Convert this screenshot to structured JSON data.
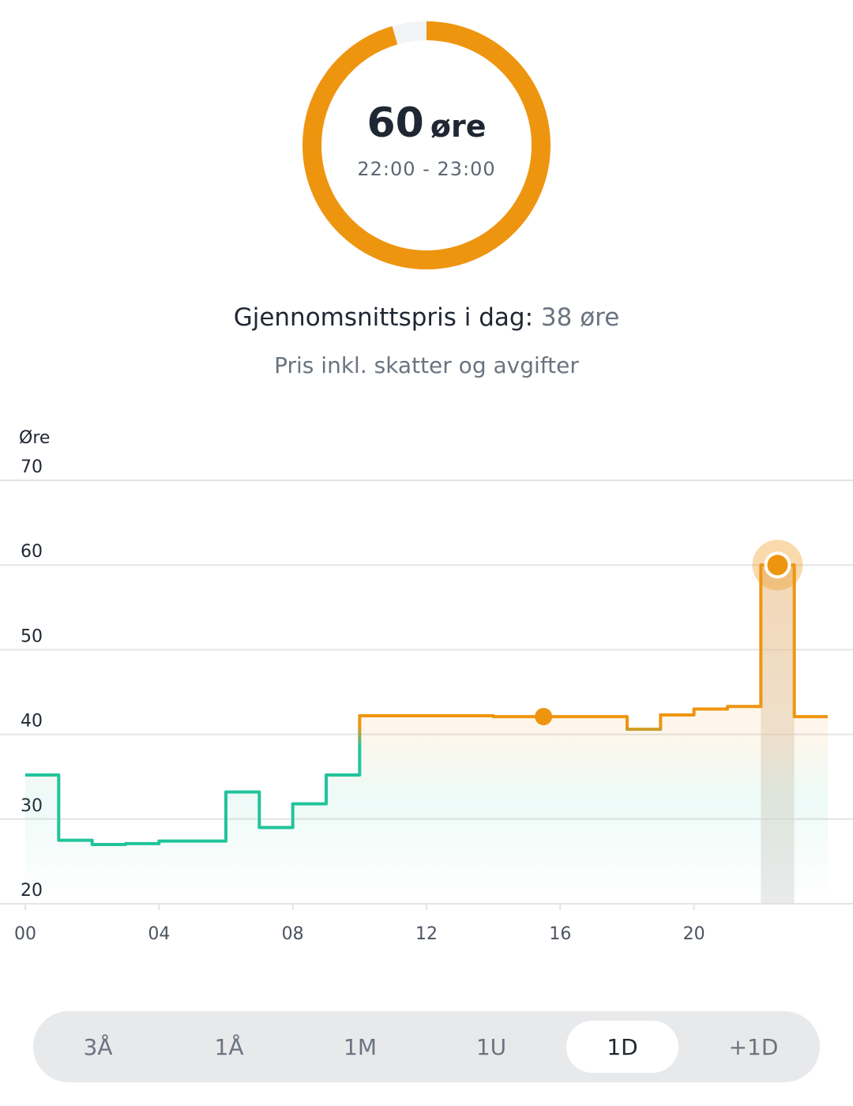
{
  "gauge": {
    "value": "60",
    "unit": "øre",
    "time_range": "22:00 - 23:00",
    "fill_fraction": 0.955,
    "color": "#ee9510",
    "track_color": "#f2f3f4"
  },
  "summary": {
    "average_label": "Gjennomsnittspris i dag:",
    "average_value": "38 øre",
    "subtitle": "Pris inkl. skatter og avgifter"
  },
  "chart_data": {
    "type": "line",
    "step": true,
    "ylabel": "Øre",
    "xlabel": "",
    "ylim": [
      20,
      70
    ],
    "xlim": [
      0,
      24
    ],
    "y_ticks": [
      20,
      30,
      40,
      50,
      60,
      70
    ],
    "x_ticks": [
      {
        "value": 0,
        "label": "00"
      },
      {
        "value": 4,
        "label": "04"
      },
      {
        "value": 8,
        "label": "08"
      },
      {
        "value": 12,
        "label": "12"
      },
      {
        "value": 16,
        "label": "16"
      },
      {
        "value": 20,
        "label": "20"
      }
    ],
    "grid": true,
    "hours": [
      0,
      1,
      2,
      3,
      4,
      5,
      6,
      7,
      8,
      9,
      10,
      11,
      12,
      13,
      14,
      15,
      16,
      17,
      18,
      19,
      20,
      21,
      22,
      23
    ],
    "values": [
      35.2,
      27.5,
      27.0,
      27.1,
      27.4,
      27.4,
      33.2,
      29.0,
      31.8,
      35.2,
      42.2,
      42.2,
      42.2,
      42.2,
      42.1,
      42.1,
      42.1,
      42.1,
      40.6,
      42.3,
      43.0,
      43.3,
      60.0,
      42.1
    ],
    "current_hour": 22,
    "current_value": 60,
    "now_marker": {
      "hour": 15.5,
      "value": 42.1
    },
    "colors": {
      "low": "#21c49a",
      "high": "#ee9510",
      "grid": "#e3e4e6",
      "current_band": "#d9dadc"
    }
  },
  "range_selector": {
    "options": [
      "3Å",
      "1Å",
      "1M",
      "1U",
      "1D",
      "+1D"
    ],
    "selected": "1D"
  }
}
